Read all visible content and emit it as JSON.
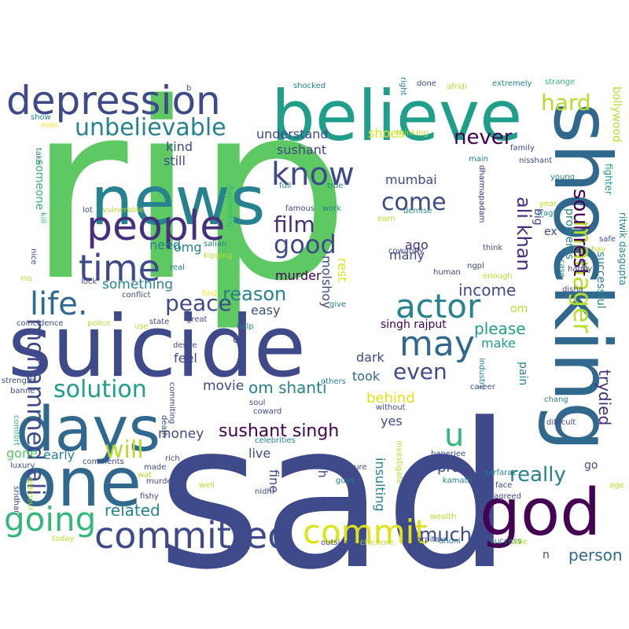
{
  "palette": {
    "background": "#ffffff",
    "dark_navy": "#3e4a89",
    "purple": "#472f7d",
    "dark_purple": "#440154",
    "blue": "#31688e",
    "teal": "#26828e",
    "teal_green": "#1f9e89",
    "green": "#35b779",
    "light_green": "#5ec962",
    "bright_green": "#58c765",
    "yellow_green": "#b5de2b",
    "yellow": "#dde318",
    "bright_yellow": "#fde725"
  },
  "words": [
    {
      "text": "rip",
      "color": "#5ec962"
    },
    {
      "text": "sad",
      "color": "#3e4a89"
    },
    {
      "text": "suicide",
      "color": "#3e4a89"
    },
    {
      "text": "shocking",
      "color": "#31688e"
    },
    {
      "text": "believe",
      "color": "#1f9e89"
    },
    {
      "text": "news",
      "color": "#26828e"
    },
    {
      "text": "one",
      "color": "#31688e"
    },
    {
      "text": "god",
      "color": "#440154"
    },
    {
      "text": "days",
      "color": "#31688e"
    },
    {
      "text": "depression",
      "color": "#3e4a89"
    },
    {
      "text": "people",
      "color": "#472f7d"
    },
    {
      "text": "time",
      "color": "#3e4a89"
    },
    {
      "text": "committed",
      "color": "#3e4a89"
    },
    {
      "text": "going",
      "color": "#35b779"
    },
    {
      "text": "commit",
      "color": "#dde318"
    },
    {
      "text": "know",
      "color": "#3e4a89"
    },
    {
      "text": "life.",
      "color": "#31688e"
    },
    {
      "text": "may",
      "color": "#31688e"
    },
    {
      "text": "actor",
      "color": "#26828e"
    },
    {
      "text": "unbelievable",
      "color": "#26828e"
    },
    {
      "text": "mohammed ali",
      "color": "#3e4a89"
    },
    {
      "text": "manager",
      "color": "#b5de2b"
    },
    {
      "text": "solution",
      "color": "#1f9e89"
    },
    {
      "text": "good",
      "color": "#3e4a89"
    },
    {
      "text": "film",
      "color": "#472f7d"
    },
    {
      "text": "u",
      "color": "#35b779"
    },
    {
      "text": "soul rest",
      "color": "#440154"
    },
    {
      "text": "hard",
      "color": "#b5de2b"
    },
    {
      "text": "peace",
      "color": "#3e4a89"
    },
    {
      "text": "even",
      "color": "#3e4a89"
    },
    {
      "text": "never",
      "color": "#440154"
    },
    {
      "text": "come",
      "color": "#3e4a89"
    },
    {
      "text": "will",
      "color": "#b5de2b"
    },
    {
      "text": "ali khan",
      "color": "#472f7d"
    },
    {
      "text": "reason",
      "color": "#26828e"
    },
    {
      "text": "really",
      "color": "#26828e"
    },
    {
      "text": "much",
      "color": "#3e4a89"
    },
    {
      "text": "trydied",
      "color": "#472f7d"
    },
    {
      "text": "sushant singh",
      "color": "#440154"
    },
    {
      "text": "om shanti",
      "color": "#26828e"
    },
    {
      "text": "related",
      "color": "#26828e"
    },
    {
      "text": "income",
      "color": "#3e4a89"
    },
    {
      "text": "please",
      "color": "#1f9e89"
    },
    {
      "text": "movie",
      "color": "#3e4a89"
    },
    {
      "text": "person",
      "color": "#31688e"
    },
    {
      "text": "money",
      "color": "#3e4a89"
    },
    {
      "text": "something",
      "color": "#26828e"
    },
    {
      "text": "pray",
      "color": "#3e4a89"
    },
    {
      "text": "behind",
      "color": "#dde318"
    },
    {
      "text": "early",
      "color": "#26828e"
    },
    {
      "text": "gone",
      "color": "#58c765"
    },
    {
      "text": "omg",
      "color": "#26828e"
    },
    {
      "text": "kind",
      "color": "#3e4a89"
    },
    {
      "text": "still",
      "color": "#3e4a89"
    },
    {
      "text": "shoes",
      "color": "#dde318"
    },
    {
      "text": "sushant",
      "color": "#3e4a89"
    },
    {
      "text": "understand",
      "color": "#3e4a89"
    },
    {
      "text": "murder",
      "color": "#440154"
    },
    {
      "text": "mumbai",
      "color": "#3e4a89"
    },
    {
      "text": "many",
      "color": "#3e4a89"
    },
    {
      "text": "ago",
      "color": "#472f7d"
    },
    {
      "text": "need",
      "color": "#26828e"
    },
    {
      "text": "easy",
      "color": "#3e4a89"
    },
    {
      "text": "feel",
      "color": "#3e4a89"
    },
    {
      "text": "make",
      "color": "#1f9e89"
    },
    {
      "text": "dark",
      "color": "#3e4a89"
    },
    {
      "text": "took",
      "color": "#31688e"
    },
    {
      "text": "yes",
      "color": "#3e4a89"
    },
    {
      "text": "live",
      "color": "#3e4a89"
    },
    {
      "text": "fine",
      "color": "#3e4a89"
    },
    {
      "text": "oh",
      "color": "#3e4a89"
    },
    {
      "text": "insulting",
      "color": "#26828e"
    },
    {
      "text": "molshoy",
      "color": "#3e4a89"
    },
    {
      "text": "rest",
      "color": "#dde318"
    },
    {
      "text": "singh rajput",
      "color": "#440154"
    },
    {
      "text": "om",
      "color": "#b5de2b"
    },
    {
      "text": "o",
      "color": "#3e4a89"
    },
    {
      "text": "ex",
      "color": "#3e4a89"
    },
    {
      "text": "problems",
      "color": "#26828e"
    },
    {
      "text": "bollywood",
      "color": "#b5de2b"
    },
    {
      "text": "successful",
      "color": "#26828e"
    },
    {
      "text": "go",
      "color": "#3e4a89"
    },
    {
      "text": "pain",
      "color": "#26828e"
    },
    {
      "text": "big",
      "color": "#3e4a89"
    },
    {
      "text": "n",
      "color": "#3e4a89"
    },
    {
      "text": "someone",
      "color": "#35b779"
    },
    {
      "text": "ritwik dasgupta",
      "color": "#26828e"
    },
    {
      "text": "fighter",
      "color": "#1f9e89"
    },
    {
      "text": "shocked",
      "color": "#26828e"
    },
    {
      "text": "done",
      "color": "#3e4a89"
    },
    {
      "text": "afridi",
      "color": "#b5de2b"
    },
    {
      "text": "extremely",
      "color": "#26828e"
    },
    {
      "text": "strange",
      "color": "#35b779"
    },
    {
      "text": "right",
      "color": "#26828e"
    },
    {
      "text": "thinking",
      "color": "#b5de2b"
    },
    {
      "text": "b",
      "color": "#3e4a89"
    },
    {
      "text": "show",
      "color": "#26828e"
    },
    {
      "text": "man",
      "color": "#fde725"
    },
    {
      "text": "take",
      "color": "#26828e"
    },
    {
      "text": "family",
      "color": "#3e4a89"
    },
    {
      "text": "main",
      "color": "#26828e"
    },
    {
      "text": "nisshant",
      "color": "#3e4a89"
    },
    {
      "text": "dharmapadam",
      "color": "#472f7d"
    },
    {
      "text": "young",
      "color": "#26828e"
    },
    {
      "text": "year",
      "color": "#b5de2b"
    },
    {
      "text": "tragic",
      "color": "#26828e"
    },
    {
      "text": "full",
      "color": "#26828e"
    },
    {
      "text": "true",
      "color": "#26828e"
    },
    {
      "text": "famous",
      "color": "#3e4a89"
    },
    {
      "text": "work",
      "color": "#26828e"
    },
    {
      "text": "demise",
      "color": "#26828e"
    },
    {
      "text": "earn",
      "color": "#b5de2b"
    },
    {
      "text": "cowardly",
      "color": "#3e4a89"
    },
    {
      "text": "happening",
      "color": "#35b779"
    },
    {
      "text": "lot",
      "color": "#3e4a89"
    },
    {
      "text": "vulnerable",
      "color": "#b5de2b"
    },
    {
      "text": "kipging",
      "color": "#b5de2b"
    },
    {
      "text": "salian",
      "color": "#26828e"
    },
    {
      "text": "kill",
      "color": "#35b779"
    },
    {
      "text": "nice",
      "color": "#3e4a89"
    },
    {
      "text": "ms",
      "color": "#b5de2b"
    },
    {
      "text": "real",
      "color": "#26828e"
    },
    {
      "text": "lock",
      "color": "#3e4a89"
    },
    {
      "text": "conflict",
      "color": "#3e4a89"
    },
    {
      "text": "find",
      "color": "#fde725"
    },
    {
      "text": "ngpl",
      "color": "#3e4a89"
    },
    {
      "text": "think",
      "color": "#3e4a89"
    },
    {
      "text": "enough",
      "color": "#b5de2b"
    },
    {
      "text": "human",
      "color": "#3e4a89"
    },
    {
      "text": "give",
      "color": "#26828e"
    },
    {
      "text": "hav",
      "color": "#b5de2b"
    },
    {
      "text": "happy",
      "color": "#3e4a89"
    },
    {
      "text": "disha",
      "color": "#3e4a89"
    },
    {
      "text": "safe",
      "color": "#3e4a89"
    },
    {
      "text": "ya",
      "color": "#3e4a89"
    },
    {
      "text": "case",
      "color": "#26828e"
    },
    {
      "text": "coincidence",
      "color": "#3e4a89"
    },
    {
      "text": "police",
      "color": "#b5de2b"
    },
    {
      "text": "state",
      "color": "#3e4a89"
    },
    {
      "text": "great",
      "color": "#3e4a89"
    },
    {
      "text": "help",
      "color": "#26828e"
    },
    {
      "text": "use",
      "color": "#b5de2b"
    },
    {
      "text": "desire",
      "color": "#3e4a89"
    },
    {
      "text": "commiting",
      "color": "#3e4a89"
    },
    {
      "text": "others",
      "color": "#26828e"
    },
    {
      "text": "industry",
      "color": "#26828e"
    },
    {
      "text": "career",
      "color": "#3e4a89"
    },
    {
      "text": "without",
      "color": "#3e4a89"
    },
    {
      "text": "difficult",
      "color": "#3e4a89"
    },
    {
      "text": "chang",
      "color": "#26828e"
    },
    {
      "text": "strength",
      "color": "#3e4a89"
    },
    {
      "text": "banne",
      "color": "#3e4a89"
    },
    {
      "text": "comfort",
      "color": "#35b779"
    },
    {
      "text": "soul",
      "color": "#3e4a89"
    },
    {
      "text": "coward",
      "color": "#3e4a89"
    },
    {
      "text": "celebrities",
      "color": "#26828e"
    },
    {
      "text": "death",
      "color": "#3e4a89"
    },
    {
      "text": "rich",
      "color": "#3e4a89"
    },
    {
      "text": "comments",
      "color": "#3e4a89"
    },
    {
      "text": "luxury",
      "color": "#3e4a89"
    },
    {
      "text": "glamour",
      "color": "#b5de2b"
    },
    {
      "text": "sridhar",
      "color": "#3e4a89"
    },
    {
      "text": "made",
      "color": "#3e4a89"
    },
    {
      "text": "wat",
      "color": "#b5de2b"
    },
    {
      "text": "murdered",
      "color": "#3e4a89"
    },
    {
      "text": "well",
      "color": "#b5de2b"
    },
    {
      "text": "fishy",
      "color": "#3e4a89"
    },
    {
      "text": "nidhi",
      "color": "#3e4a89"
    },
    {
      "text": "investigate",
      "color": "#b5de2b"
    },
    {
      "text": "sure",
      "color": "#3e4a89"
    },
    {
      "text": "guys",
      "color": "#26828e"
    },
    {
      "text": "banerjee",
      "color": "#3e4a89"
    },
    {
      "text": "kamath",
      "color": "#26828e"
    },
    {
      "text": "sarfaraz",
      "color": "#26828e"
    },
    {
      "text": "face",
      "color": "#3e4a89"
    },
    {
      "text": "agreed",
      "color": "#3e4a89"
    },
    {
      "text": "age",
      "color": "#b5de2b"
    },
    {
      "text": "wealth",
      "color": "#b5de2b"
    },
    {
      "text": "arpita",
      "color": "#3e4a89"
    },
    {
      "text": "outside",
      "color": "#3e4a89"
    },
    {
      "text": "chichore",
      "color": "#b5de2b"
    },
    {
      "text": "dhoni",
      "color": "#26828e"
    },
    {
      "text": "success",
      "color": "#26828e"
    },
    {
      "text": "side",
      "color": "#b5de2b"
    },
    {
      "text": "today",
      "color": "#b5de2b"
    }
  ]
}
